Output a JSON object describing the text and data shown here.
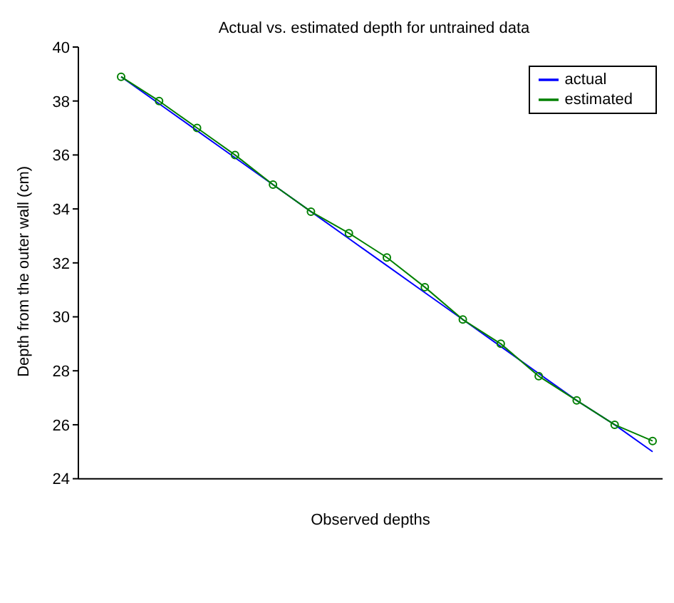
{
  "chart_data": {
    "type": "line",
    "title": "Actual vs. estimated depth for untrained data",
    "xlabel": "Observed depths",
    "ylabel": "Depth from the outer wall (cm)",
    "categories": [
      null,
      null,
      null,
      null,
      null,
      null,
      null,
      null,
      null,
      null,
      null,
      null,
      null,
      null,
      null
    ],
    "series": [
      {
        "name": "actual",
        "color": "#0000ff",
        "marker": "none",
        "values": [
          38.9,
          37.9,
          36.9,
          35.9,
          34.9,
          33.9,
          32.9,
          31.9,
          30.9,
          29.9,
          28.9,
          27.9,
          26.9,
          26.0,
          25.0
        ]
      },
      {
        "name": "estimated",
        "color": "#008000",
        "marker": "circle",
        "values": [
          38.9,
          38.0,
          37.0,
          36.0,
          34.9,
          33.9,
          33.1,
          32.2,
          31.1,
          29.9,
          29.0,
          27.8,
          26.9,
          26.0,
          25.4
        ]
      }
    ],
    "ylim": [
      24,
      40
    ],
    "yticks": [
      24,
      26,
      28,
      30,
      32,
      34,
      36,
      38,
      40
    ],
    "legend": "top right",
    "tick_labels": "y",
    "line_style": "solid"
  }
}
